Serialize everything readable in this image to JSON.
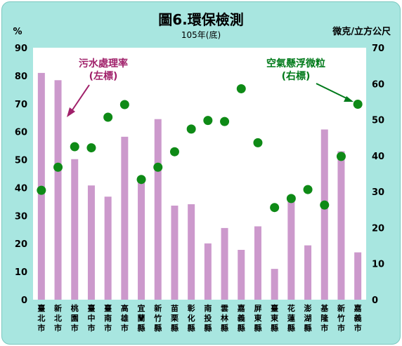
{
  "chart_data": {
    "type": "bar",
    "title": "圖6.環保檢測",
    "subtitle": "105年(底)",
    "ylabel": "%",
    "y2label": "微克/立方公尺",
    "ylim": [
      0,
      90
    ],
    "y2lim": [
      0,
      70
    ],
    "yticks": [
      "0",
      "10",
      "20",
      "30",
      "40",
      "50",
      "60",
      "70",
      "80",
      "90"
    ],
    "y2ticks": [
      "0",
      "10",
      "20",
      "30",
      "40",
      "50",
      "60",
      "70"
    ],
    "categories": [
      "臺北市",
      "新北市",
      "桃園市",
      "臺中市",
      "臺南市",
      "高雄市",
      "宜蘭縣",
      "新竹縣",
      "苗栗縣",
      "彰化縣",
      "南投縣",
      "雲林縣",
      "嘉義縣",
      "屏東縣",
      "臺東縣",
      "花蓮縣",
      "澎湖縣",
      "基隆市",
      "新竹市",
      "嘉義市"
    ],
    "series": [
      {
        "name": "污水處理率",
        "axis": "left",
        "kind": "bar",
        "color": "#cc99cc",
        "values": [
          81.0,
          78.4,
          50.2,
          40.8,
          36.8,
          58.2,
          43.0,
          64.5,
          33.6,
          34.1,
          20.1,
          25.6,
          17.8,
          26.2,
          11.0,
          36.0,
          19.4,
          60.8,
          53.0,
          16.9
        ]
      },
      {
        "name": "空氣懸浮微粒",
        "axis": "right",
        "kind": "scatter",
        "color": "#0e8a16",
        "values": [
          30.4,
          36.8,
          42.5,
          42.2,
          50.7,
          54.2,
          33.4,
          36.8,
          41.1,
          47.4,
          49.8,
          49.5,
          58.6,
          43.6,
          25.6,
          28.1,
          30.6,
          26.3,
          39.8,
          54.3
        ]
      }
    ],
    "annotations": {
      "left": {
        "line1": "污水處理率",
        "line2": "(左標)"
      },
      "right": {
        "line1": "空氣懸浮微粒",
        "line2": "(右標)"
      }
    }
  }
}
